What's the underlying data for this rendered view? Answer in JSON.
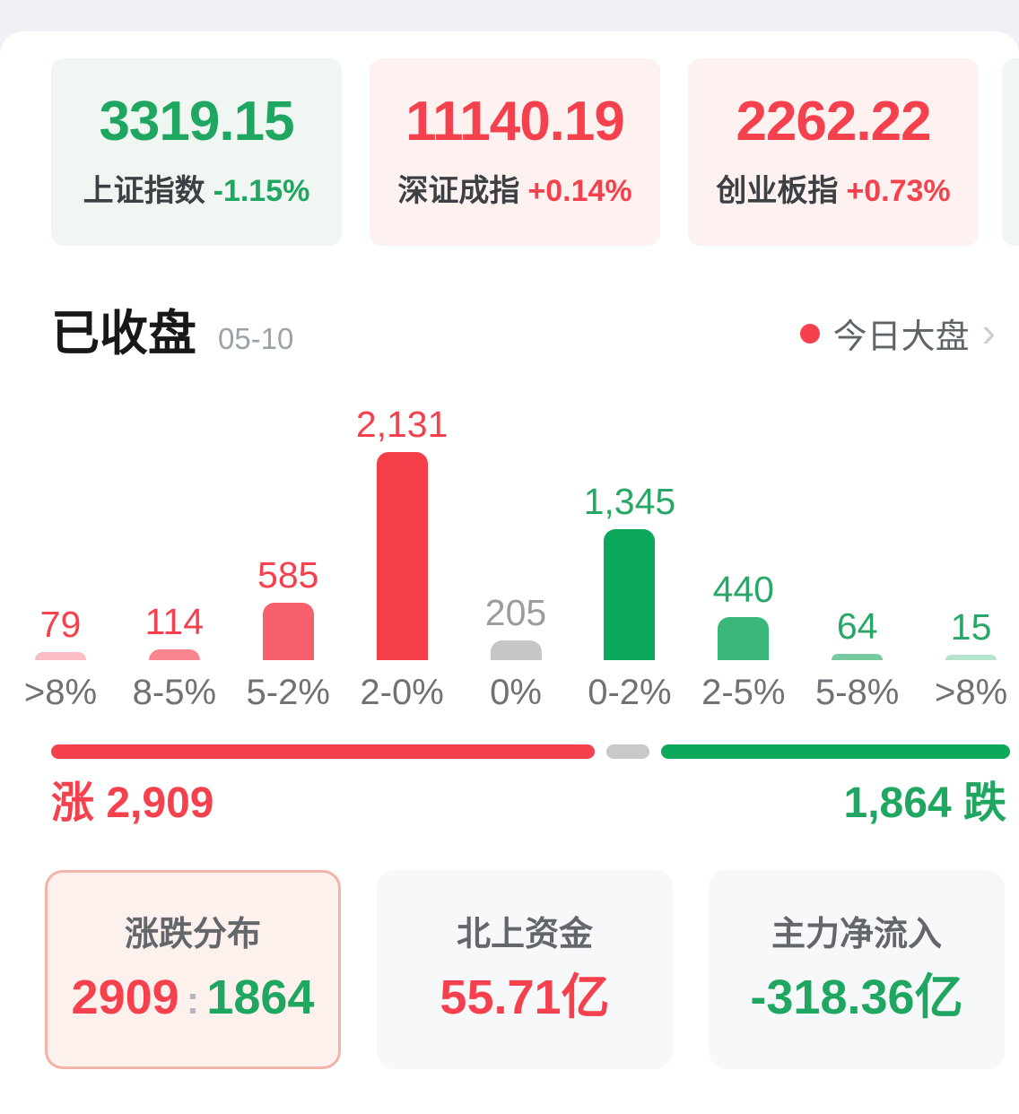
{
  "page": {
    "background": "#f0f1f6"
  },
  "colors": {
    "red": "#f5414e",
    "green": "#1fa661",
    "flat_gray": "#c9c9c9",
    "up_bg": "#fdf2f0",
    "down_bg": "#f0f7f2",
    "dot_red": "#f5414e"
  },
  "indices": [
    {
      "value": "3319.15",
      "name": "上证指数",
      "change": "-1.15%",
      "trend": "down"
    },
    {
      "value": "11140.19",
      "name": "深证成指",
      "change": "+0.14%",
      "trend": "up"
    },
    {
      "value": "2262.22",
      "name": "创业板指",
      "change": "+0.73%",
      "trend": "up"
    }
  ],
  "market_header": {
    "status": "已收盘",
    "date": "05-10",
    "today_link": "今日大盘",
    "chevron": "›"
  },
  "chart_data": {
    "type": "bar",
    "title": "涨跌分布",
    "categories": [
      ">8%",
      "8-5%",
      "5-2%",
      "2-0%",
      "0%",
      "0-2%",
      "2-5%",
      "5-8%",
      ">8%"
    ],
    "values": [
      79,
      114,
      585,
      2131,
      205,
      1345,
      440,
      64,
      15
    ],
    "value_labels": [
      "79",
      "114",
      "585",
      "2,131",
      "205",
      "1,345",
      "440",
      "64",
      "15"
    ],
    "bar_colors": [
      "#f9bdc3",
      "#f8868f",
      "#f6606c",
      "#f63d4a",
      "#c6c6c6",
      "#0ba85c",
      "#3cb77b",
      "#76cba0",
      "#b5e3cb"
    ],
    "label_colors": [
      "#f5414e",
      "#f5414e",
      "#f5414e",
      "#f5414e",
      "#9c9c9c",
      "#2aa768",
      "#2aa768",
      "#2aa768",
      "#2aa768"
    ],
    "xlabel": "",
    "ylabel": "",
    "ylim": [
      0,
      2131
    ],
    "grid": false,
    "legend": false
  },
  "summary_bar": {
    "up_label": "涨",
    "up_text": "2,909",
    "up_value": 2909,
    "flat_value": 205,
    "down_text": "1,864",
    "down_label": "跌",
    "down_value": 1864
  },
  "bottom_cards": [
    {
      "label": "涨跌分布",
      "up": "2909",
      "separator": ":",
      "down": "1864",
      "active": true
    },
    {
      "label": "北上资金",
      "value": "55.71亿",
      "trend": "up"
    },
    {
      "label": "主力净流入",
      "value": "-318.36亿",
      "trend": "down"
    }
  ]
}
